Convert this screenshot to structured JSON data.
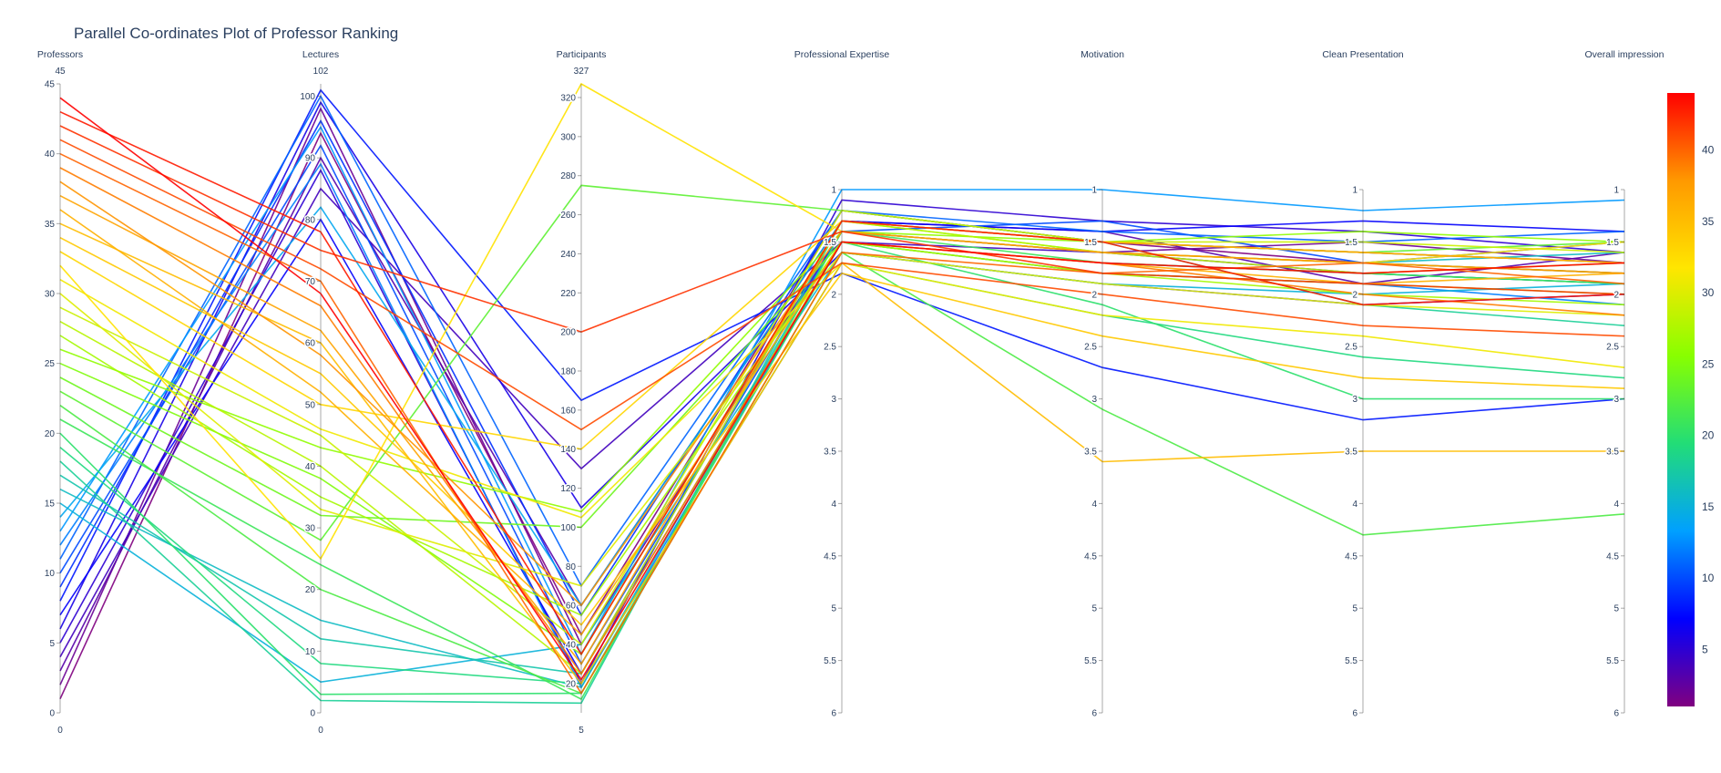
{
  "chart_data": {
    "type": "parallel_coordinates",
    "title": "Parallel Co-ordinates Plot of Professor Ranking",
    "colorscale": [
      "#800080",
      "#0000ff",
      "#00a0ff",
      "#22dd77",
      "#88ff00",
      "#ffe600",
      "#ff9900",
      "#ff0000"
    ],
    "colorbar": {
      "ticks": [
        5,
        10,
        15,
        20,
        25,
        30,
        35,
        40
      ],
      "range": [
        1,
        44
      ]
    },
    "dimensions": [
      {
        "label": "Professors",
        "range": [
          0,
          45
        ],
        "min_label": "0",
        "max_label": "45",
        "ticks": [
          0,
          5,
          10,
          15,
          20,
          25,
          30,
          35,
          40,
          45
        ]
      },
      {
        "label": "Lectures",
        "range": [
          0,
          102
        ],
        "min_label": "0",
        "max_label": "102",
        "ticks": [
          0,
          10,
          20,
          30,
          40,
          50,
          60,
          70,
          80,
          90,
          100
        ]
      },
      {
        "label": "Participants",
        "range": [
          5,
          327
        ],
        "min_label": "5",
        "max_label": "327",
        "ticks": [
          20,
          40,
          60,
          80,
          100,
          120,
          140,
          160,
          180,
          200,
          220,
          240,
          260,
          280,
          300,
          320
        ]
      },
      {
        "label": "Professional Expertise",
        "range": [
          1,
          6
        ],
        "reversed": true,
        "ticks": [
          "1",
          "1.5",
          "2",
          "2.5",
          "3",
          "3.5",
          "4",
          "4.5",
          "5",
          "5.5",
          "6"
        ]
      },
      {
        "label": "Motivation",
        "range": [
          1,
          6
        ],
        "reversed": true,
        "ticks": [
          "1",
          "1.5",
          "2",
          "2.5",
          "3",
          "3.5",
          "4",
          "4.5",
          "5",
          "5.5",
          "6"
        ]
      },
      {
        "label": "Clean Presentation",
        "range": [
          1,
          6
        ],
        "reversed": true,
        "ticks": [
          "1",
          "1.5",
          "2",
          "2.5",
          "3",
          "3.5",
          "4",
          "4.5",
          "5",
          "5.5",
          "6"
        ]
      },
      {
        "label": "Overall impression",
        "range": [
          1,
          6
        ],
        "reversed": true,
        "ticks": [
          "1",
          "1.5",
          "2",
          "2.5",
          "3",
          "3.5",
          "4",
          "4.5",
          "5",
          "5.5",
          "6"
        ]
      }
    ],
    "records": [
      [
        1,
        94,
        45,
        1.2,
        1.5,
        1.7,
        1.8
      ],
      [
        2,
        98,
        40,
        1.4,
        1.6,
        1.5,
        1.7
      ],
      [
        3,
        90,
        60,
        1.3,
        1.4,
        1.9,
        1.6
      ],
      [
        4,
        85,
        130,
        1.5,
        1.6,
        1.8,
        1.9
      ],
      [
        5,
        88,
        20,
        1.1,
        1.3,
        1.4,
        1.6
      ],
      [
        6,
        99,
        110,
        1.6,
        1.9,
        2.1,
        2.0
      ],
      [
        7,
        80,
        25,
        1.3,
        1.4,
        1.3,
        1.4
      ],
      [
        8,
        101,
        165,
        1.8,
        2.7,
        3.2,
        3.0
      ],
      [
        9,
        96,
        55,
        1.2,
        1.5,
        1.6,
        1.7
      ],
      [
        10,
        92,
        30,
        1.4,
        1.3,
        1.7,
        1.5
      ],
      [
        11,
        100,
        70,
        1.2,
        1.4,
        1.5,
        1.4
      ],
      [
        12,
        89,
        18,
        1.5,
        1.8,
        1.9,
        2.1
      ],
      [
        13,
        95,
        35,
        1.0,
        1.0,
        1.2,
        1.1
      ],
      [
        14,
        82,
        60,
        1.3,
        1.5,
        1.6,
        1.7
      ],
      [
        15,
        5,
        40,
        1.6,
        1.9,
        2.0,
        1.9
      ],
      [
        16,
        15,
        18,
        1.4,
        1.6,
        1.7,
        1.6
      ],
      [
        17,
        12,
        25,
        1.5,
        1.7,
        1.8,
        1.9
      ],
      [
        18,
        2,
        10,
        1.3,
        1.5,
        2.1,
        2.3
      ],
      [
        19,
        8,
        20,
        1.7,
        2.2,
        2.6,
        2.8
      ],
      [
        20,
        3,
        15,
        1.5,
        2.1,
        3.0,
        3.0
      ],
      [
        21,
        24,
        12,
        1.4,
        1.7,
        1.8,
        1.9
      ],
      [
        22,
        20,
        15,
        1.6,
        3.1,
        4.3,
        4.1
      ],
      [
        23,
        28,
        275,
        1.2,
        1.5,
        1.6,
        1.5
      ],
      [
        24,
        32,
        100,
        1.5,
        1.8,
        1.9,
        2.0
      ],
      [
        25,
        38,
        35,
        1.3,
        1.6,
        1.7,
        1.8
      ],
      [
        26,
        43,
        108,
        1.4,
        1.5,
        1.4,
        1.5
      ],
      [
        27,
        35,
        55,
        1.5,
        1.8,
        2.0,
        2.1
      ],
      [
        28,
        40,
        25,
        1.3,
        1.6,
        1.8,
        1.7
      ],
      [
        29,
        45,
        40,
        1.2,
        1.5,
        1.5,
        1.6
      ],
      [
        30,
        33,
        70,
        1.6,
        1.9,
        2.1,
        2.2
      ],
      [
        31,
        46,
        105,
        1.7,
        2.2,
        2.4,
        2.7
      ],
      [
        32,
        25,
        327,
        1.4,
        1.6,
        1.7,
        1.5
      ],
      [
        33,
        50,
        140,
        1.3,
        1.5,
        1.6,
        1.7
      ],
      [
        34,
        55,
        50,
        1.8,
        2.4,
        2.8,
        2.9
      ],
      [
        35,
        60,
        20,
        1.7,
        3.6,
        3.5,
        3.5
      ],
      [
        36,
        52,
        45,
        1.5,
        1.7,
        1.9,
        1.8
      ],
      [
        37,
        62,
        30,
        1.3,
        1.5,
        1.6,
        1.7
      ],
      [
        38,
        58,
        60,
        1.4,
        1.6,
        1.7,
        1.8
      ],
      [
        39,
        66,
        25,
        1.5,
        1.7,
        2.0,
        2.2
      ],
      [
        40,
        70,
        15,
        1.6,
        1.8,
        1.7,
        1.9
      ],
      [
        41,
        72,
        150,
        1.7,
        2.0,
        2.3,
        2.4
      ],
      [
        42,
        75,
        200,
        1.4,
        1.8,
        1.9,
        2.0
      ],
      [
        43,
        78,
        35,
        1.3,
        1.5,
        2.1,
        2.0
      ],
      [
        44,
        68,
        22,
        1.5,
        1.7,
        1.8,
        1.7
      ]
    ]
  }
}
